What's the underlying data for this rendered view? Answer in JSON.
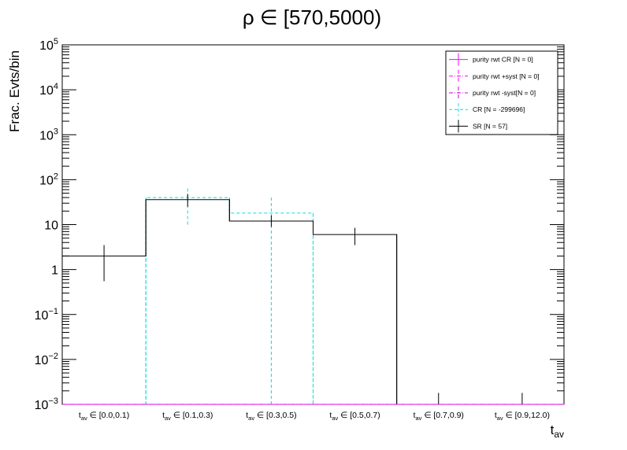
{
  "chart_data": {
    "type": "histogram",
    "title": "ρ ∈ [570,5000)",
    "ylabel": "Frac. Evts/bin",
    "xlabel_main": "t",
    "xlabel_sub": "av",
    "yscale": "log",
    "ylim": [
      0.001,
      100000
    ],
    "y_ticks": [
      {
        "value": 100000,
        "base": "10",
        "exp": "5"
      },
      {
        "value": 10000,
        "base": "10",
        "exp": "4"
      },
      {
        "value": 1000,
        "base": "10",
        "exp": "3"
      },
      {
        "value": 100,
        "base": "10",
        "exp": "2"
      },
      {
        "value": 10,
        "base": "10",
        "exp": ""
      },
      {
        "value": 1,
        "base": "1",
        "exp": ""
      },
      {
        "value": 0.1,
        "base": "10",
        "exp": "−1"
      },
      {
        "value": 0.01,
        "base": "10",
        "exp": "−2"
      },
      {
        "value": 0.001,
        "base": "10",
        "exp": "−3"
      }
    ],
    "categories": [
      {
        "pre": "t",
        "sub": "av",
        "post": " ∈ [0.0,0.1)"
      },
      {
        "pre": "t",
        "sub": "av",
        "post": " ∈ [0.1,0.3)"
      },
      {
        "pre": "t",
        "sub": "av",
        "post": " ∈ [0.3,0.5)"
      },
      {
        "pre": "t",
        "sub": "av",
        "post": " ∈ [0.5,0.7)"
      },
      {
        "pre": "t",
        "sub": "av",
        "post": " ∈ [0.7,0.9)"
      },
      {
        "pre": "t",
        "sub": "av",
        "post": " ∈ [0.9,12.0)"
      }
    ],
    "series": [
      {
        "name": "purity rwt CR [N = 0]",
        "color": "#ff00ff",
        "dash": "solid",
        "values": [
          0,
          0,
          0,
          0,
          0,
          0
        ],
        "err_low": [
          0,
          0,
          0,
          0,
          0,
          0
        ],
        "err_high": [
          0,
          0,
          0,
          0,
          0,
          0
        ]
      },
      {
        "name": "purity rwt +syst [N = 0]",
        "color": "#ff00ff",
        "dash": "dashdot",
        "values": [
          0,
          0,
          0,
          0,
          0,
          0
        ],
        "err_low": [
          0,
          0,
          0,
          0,
          0,
          0
        ],
        "err_high": [
          0,
          0,
          0,
          0,
          0,
          0
        ]
      },
      {
        "name": "purity rwt -syst[N = 0]",
        "color": "#cc00cc",
        "dash": "dashdot",
        "values": [
          0,
          0,
          0,
          0,
          0,
          0
        ],
        "err_low": [
          0,
          0,
          0,
          0,
          0,
          0
        ],
        "err_high": [
          0,
          0,
          0,
          0,
          0,
          0
        ]
      },
      {
        "name": "CR [N = -299696]",
        "color": "#00e0e0",
        "dash": "dash",
        "values": [
          0,
          40,
          18,
          0,
          0,
          0
        ],
        "err_low": [
          0,
          10,
          0.001,
          0,
          0,
          0
        ],
        "err_high": [
          0,
          68,
          40,
          0,
          0,
          0
        ]
      },
      {
        "name": "SR [N = 57]",
        "color": "#000000",
        "dash": "solid",
        "values": [
          2,
          36,
          12,
          6,
          0,
          0
        ],
        "err_low": [
          0.55,
          25,
          9,
          3.5,
          0,
          0
        ],
        "err_high": [
          3.5,
          48,
          16,
          8.5,
          0.0018,
          0.0018
        ]
      }
    ],
    "legend_position": "top-right"
  }
}
